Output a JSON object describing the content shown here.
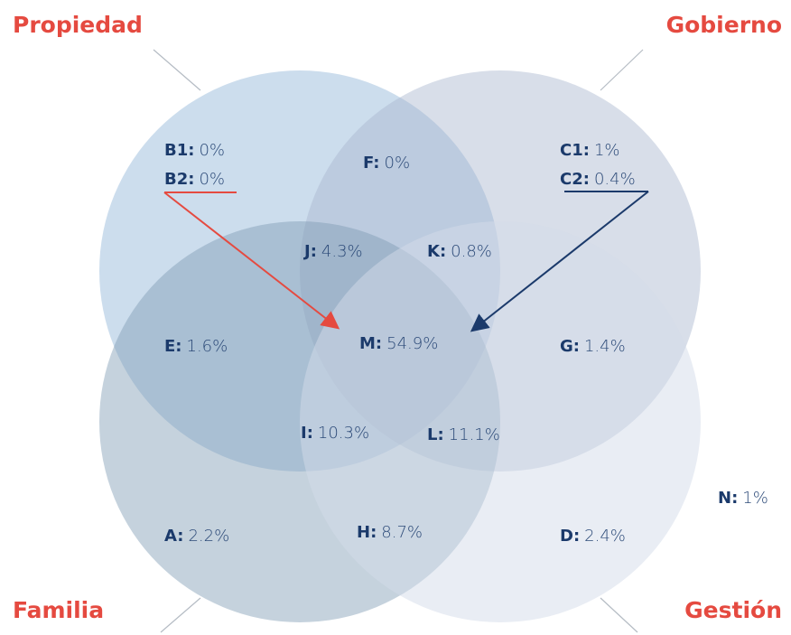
{
  "sets": [
    {
      "label": "Propiedad"
    },
    {
      "label": "Gobierno"
    },
    {
      "label": "Familia"
    },
    {
      "label": "Gestión"
    }
  ],
  "regions": [
    {
      "key": "B1:",
      "value": "0%"
    },
    {
      "key": "B2:",
      "value": "0%"
    },
    {
      "key": "F:",
      "value": "0%"
    },
    {
      "key": "C1:",
      "value": "1%"
    },
    {
      "key": "C2:",
      "value": "0.4%"
    },
    {
      "key": "J:",
      "value": "4.3%"
    },
    {
      "key": "K:",
      "value": "0.8%"
    },
    {
      "key": "E:",
      "value": "1.6%"
    },
    {
      "key": "M:",
      "value": "54.9%"
    },
    {
      "key": "G:",
      "value": "1.4%"
    },
    {
      "key": "I:",
      "value": "10.3%"
    },
    {
      "key": "L:",
      "value": "11.1%"
    },
    {
      "key": "N:",
      "value": "1%"
    },
    {
      "key": "A:",
      "value": "2.2%"
    },
    {
      "key": "H:",
      "value": "8.7%"
    },
    {
      "key": "D:",
      "value": "2.4%"
    }
  ]
}
